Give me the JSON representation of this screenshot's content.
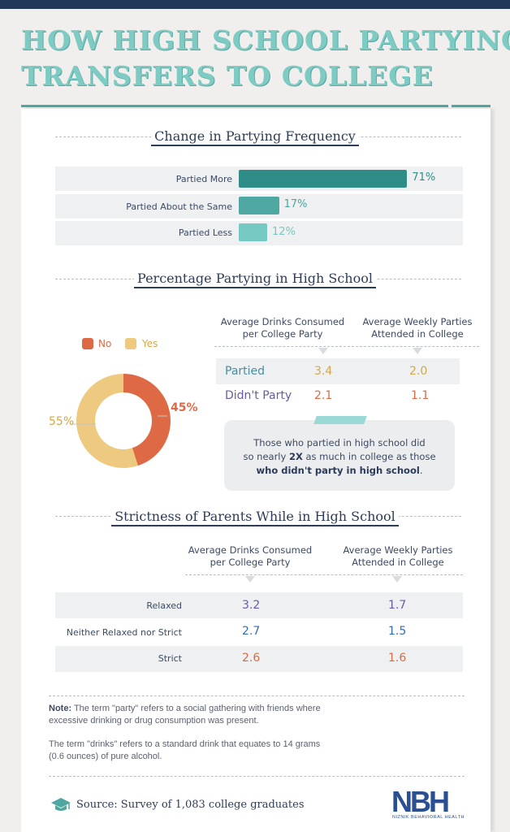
{
  "title": {
    "line1": "HOW HIGH SCHOOL PARTYING",
    "line2": "TRANSFERS TO COLLEGE"
  },
  "colors": {
    "teal_dark": "#2e8d87",
    "teal_mid": "#4fa7a1",
    "teal_light": "#76c8c3",
    "orange": "#dd6a45",
    "yellow": "#eec980",
    "purple": "#6b5aa6",
    "blue": "#2f6fb5"
  },
  "chart_data": [
    {
      "type": "bar",
      "title": "Change in Partying Frequency",
      "categories": [
        "Partied More",
        "Partied About the Same",
        "Partied Less"
      ],
      "values": [
        71,
        17,
        12
      ],
      "labels": [
        "71%",
        "17%",
        "12%"
      ],
      "xlim": [
        0,
        100
      ]
    },
    {
      "type": "pie",
      "title": "Percentage Partying in High School",
      "legend": [
        "No",
        "Yes"
      ],
      "categories": [
        "No",
        "Yes"
      ],
      "values": [
        45,
        55
      ],
      "labels": [
        "45%",
        "55%"
      ]
    },
    {
      "type": "table",
      "columns": [
        "Average Drinks Consumed per College Party",
        "Average Weekly Parties Attended in College"
      ],
      "rows": [
        {
          "label": "Partied",
          "values": [
            "3.4",
            "2.0"
          ]
        },
        {
          "label": "Didn't Party",
          "values": [
            "2.1",
            "1.1"
          ]
        }
      ]
    },
    {
      "type": "table",
      "title": "Strictness of Parents While in High School",
      "columns": [
        "Average Drinks Consumed per College Party",
        "Average Weekly Parties Attended in College"
      ],
      "rows": [
        {
          "label": "Relaxed",
          "values": [
            "3.2",
            "1.7"
          ]
        },
        {
          "label": "Neither Relaxed nor Strict",
          "values": [
            "2.7",
            "1.5"
          ]
        },
        {
          "label": "Strict",
          "values": [
            "2.6",
            "1.6"
          ]
        }
      ]
    }
  ],
  "section2": {
    "col1_line1": "Average Drinks Consumed",
    "col1_line2": "per College Party",
    "col2_line1": "Average Weekly Parties",
    "col2_line2": "Attended in College",
    "callout": {
      "line1": "Those who partied in high school did",
      "line2_pre": "so nearly ",
      "line2_bold": "2X",
      "line2_post": " as much in college as those",
      "line3_bold": "who didn't party in high school",
      "line3_post": "."
    }
  },
  "note": {
    "label": "Note:",
    "text1a": " The term \"party\" refers to a social gathering with friends where",
    "text1b": "excessive drinking or drug consumption was present.",
    "text2a": "The term \"drinks\" refers to a standard drink that equates to 14 grams",
    "text2b": "(0.6 ounces) of pure alcohol."
  },
  "footer": {
    "icon": "graduation-cap-icon",
    "source": "Source: Survey of 1,083 college graduates",
    "logo": "NBH",
    "logo_sub": "NIZNIK BEHAVIORAL HEALTH"
  }
}
